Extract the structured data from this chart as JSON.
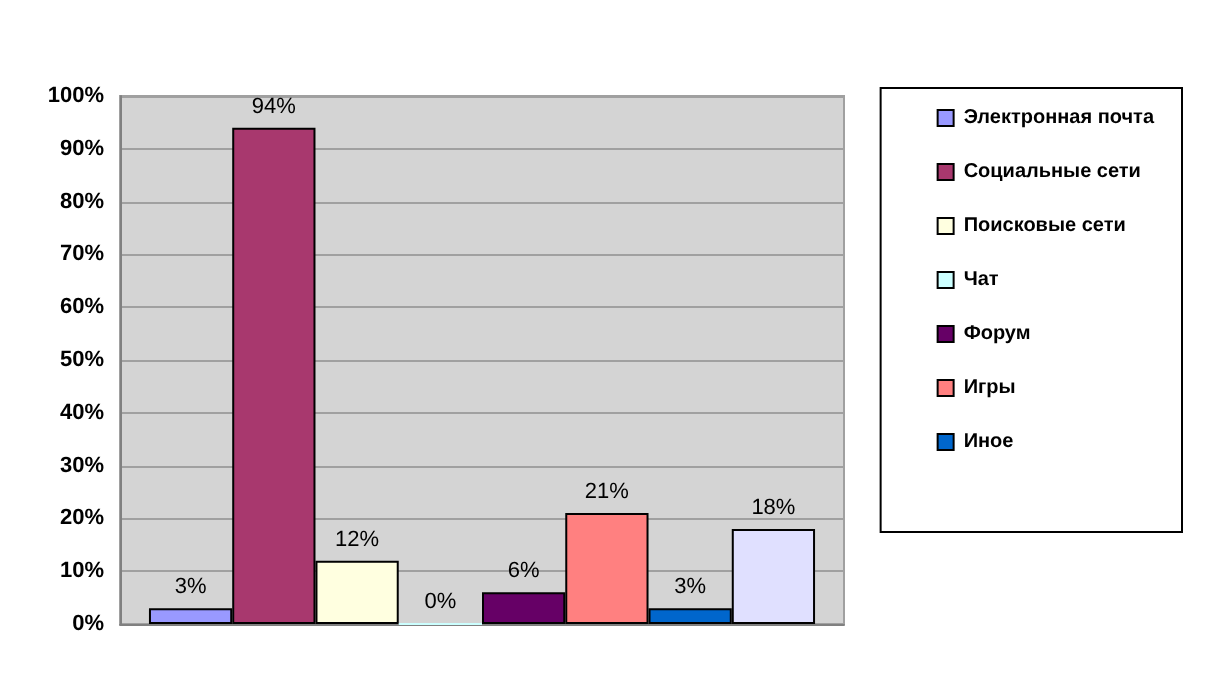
{
  "chart_data": {
    "type": "bar",
    "categories": [
      null
    ],
    "series": [
      {
        "name": "Электронная почта",
        "color": "#9999ff",
        "values": [
          3
        ],
        "value_labels": [
          "3%"
        ]
      },
      {
        "name": "Социальные сети",
        "color": "#a8386e",
        "values": [
          94
        ],
        "value_labels": [
          "94%"
        ]
      },
      {
        "name": "Поисковые сети",
        "color": "#ffffe0",
        "values": [
          12
        ],
        "value_labels": [
          "12%"
        ]
      },
      {
        "name": "Чат",
        "color": "#ccffff",
        "values": [
          0
        ],
        "value_labels": [
          "0%"
        ]
      },
      {
        "name": "Форум",
        "color": "#660066",
        "values": [
          6
        ],
        "value_labels": [
          "6%"
        ]
      },
      {
        "name": "Игры",
        "color": "#ff8080",
        "values": [
          21
        ],
        "value_labels": [
          "21%"
        ]
      },
      {
        "name": "Иное",
        "color": "#0066cc",
        "values": [
          3
        ],
        "value_labels": [
          "3%"
        ]
      },
      {
        "color": "#e0e0ff",
        "values": [
          18
        ],
        "value_labels": [
          "18%"
        ]
      }
    ],
    "ylim": [
      0,
      100
    ],
    "yticks": [
      {
        "value": 0,
        "label": "0%"
      },
      {
        "value": 10,
        "label": "10%"
      },
      {
        "value": 20,
        "label": "20%"
      },
      {
        "value": 30,
        "label": "30%"
      },
      {
        "value": 40,
        "label": "40%"
      },
      {
        "value": 50,
        "label": "50%"
      },
      {
        "value": 60,
        "label": "60%"
      },
      {
        "value": 70,
        "label": "70%"
      },
      {
        "value": 80,
        "label": "80%"
      },
      {
        "value": 90,
        "label": "90%"
      },
      {
        "value": 100,
        "label": "100%"
      }
    ],
    "grid": "y",
    "legend": "right"
  }
}
